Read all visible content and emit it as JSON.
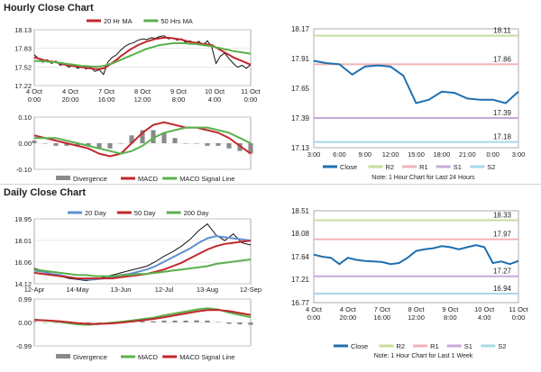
{
  "colors": {
    "ma_short": "#c0282d",
    "ma_long": "#5ab04c",
    "ma_blue": "#5f8fd0",
    "close": "#1f6fb0",
    "r2": "#c8dd9a",
    "r1": "#f0b4b4",
    "s1": "#c8a8d8",
    "s2": "#a8d8e8",
    "divergence": "#8a8a8a"
  },
  "hourly": {
    "title": "Hourly Close Chart",
    "price_chart": {
      "type": "line",
      "legend": [
        "20 Hr MA",
        "50 Hrs MA"
      ],
      "y_ticks": [
        "18.13",
        "17.83",
        "17.52",
        "17.22"
      ],
      "x_ticks": [
        [
          "4 Oct",
          "0:00"
        ],
        [
          "4 Oct",
          "20:00"
        ],
        [
          "7 Oct",
          "16:00"
        ],
        [
          "8 Oct",
          "12:00"
        ],
        [
          "9 Oct",
          "8:00"
        ],
        [
          "10 Oct",
          "4:00"
        ],
        [
          "11 Oct",
          "0:00"
        ]
      ],
      "ylim": [
        17.22,
        18.13
      ],
      "x": [
        0,
        2,
        4,
        6,
        8,
        10,
        12,
        14,
        16,
        18,
        20,
        22,
        24,
        26,
        28,
        30,
        32,
        34,
        36,
        38,
        40,
        42,
        44,
        46,
        48,
        50,
        52,
        54,
        56,
        58,
        60,
        62,
        64,
        66,
        68,
        70,
        72,
        74,
        76,
        78,
        80,
        82,
        84,
        86,
        88,
        90,
        92,
        94,
        96,
        98,
        100
      ],
      "close_series": [
        17.72,
        17.66,
        17.6,
        17.64,
        17.58,
        17.62,
        17.55,
        17.57,
        17.52,
        17.56,
        17.5,
        17.53,
        17.49,
        17.52,
        17.45,
        17.48,
        17.4,
        17.6,
        17.68,
        17.72,
        17.8,
        17.86,
        17.9,
        17.92,
        17.96,
        17.98,
        17.97,
        18.0,
        17.99,
        18.02,
        18.03,
        17.98,
        18.0,
        17.96,
        17.98,
        17.92,
        17.95,
        17.9,
        17.94,
        17.88,
        17.95,
        17.85,
        17.58,
        17.7,
        17.75,
        17.66,
        17.58,
        17.52,
        17.55,
        17.5,
        17.56
      ],
      "series": [
        {
          "name": "20 Hr MA",
          "values": [
            17.68,
            17.66,
            17.64,
            17.62,
            17.61,
            17.6,
            17.58,
            17.56,
            17.55,
            17.54,
            17.53,
            17.52,
            17.51,
            17.5,
            17.49,
            17.49,
            17.5,
            17.54,
            17.59,
            17.64,
            17.7,
            17.75,
            17.8,
            17.84,
            17.88,
            17.91,
            17.94,
            17.96,
            17.98,
            17.99,
            18.0,
            18.0,
            17.99,
            17.98,
            17.97,
            17.95,
            17.93,
            17.92,
            17.91,
            17.9,
            17.89,
            17.88,
            17.84,
            17.8,
            17.76,
            17.72,
            17.68,
            17.65,
            17.62,
            17.59,
            17.56
          ]
        },
        {
          "name": "50 Hrs MA",
          "values": [
            17.62,
            17.62,
            17.62,
            17.61,
            17.6,
            17.6,
            17.59,
            17.58,
            17.57,
            17.56,
            17.55,
            17.54,
            17.54,
            17.53,
            17.53,
            17.53,
            17.54,
            17.56,
            17.58,
            17.61,
            17.64,
            17.67,
            17.7,
            17.73,
            17.76,
            17.79,
            17.82,
            17.84,
            17.86,
            17.88,
            17.89,
            17.9,
            17.91,
            17.91,
            17.91,
            17.91,
            17.9,
            17.9,
            17.89,
            17.88,
            17.87,
            17.86,
            17.84,
            17.83,
            17.81,
            17.8,
            17.78,
            17.77,
            17.76,
            17.75,
            17.74
          ]
        }
      ]
    },
    "macd_chart": {
      "type": "line",
      "legend": [
        "Divergence",
        "MACD",
        "MACD Signal Line"
      ],
      "y_ticks": [
        "0.10",
        "0.00",
        "-0.10"
      ],
      "ylim": [
        -0.1,
        0.1
      ],
      "x": [
        0,
        5,
        10,
        15,
        20,
        25,
        30,
        35,
        40,
        45,
        50,
        55,
        60,
        65,
        70,
        75,
        80,
        85,
        90,
        95,
        100
      ],
      "series": [
        {
          "name": "MACD",
          "values": [
            0.03,
            0.02,
            0.01,
            0.0,
            -0.01,
            -0.02,
            -0.04,
            -0.05,
            -0.04,
            0.0,
            0.04,
            0.07,
            0.08,
            0.07,
            0.06,
            0.06,
            0.05,
            0.04,
            0.02,
            -0.01,
            -0.04
          ]
        },
        {
          "name": "MACD Signal Line",
          "values": [
            0.02,
            0.02,
            0.02,
            0.01,
            0.0,
            -0.01,
            -0.02,
            -0.03,
            -0.04,
            -0.03,
            -0.01,
            0.02,
            0.04,
            0.05,
            0.06,
            0.06,
            0.06,
            0.05,
            0.04,
            0.02,
            0.0
          ]
        },
        {
          "name": "Divergence",
          "values": [
            0.01,
            0.0,
            -0.01,
            -0.01,
            -0.01,
            -0.01,
            -0.02,
            -0.02,
            0.0,
            0.03,
            0.05,
            0.05,
            0.04,
            0.02,
            0.0,
            0.0,
            -0.01,
            -0.01,
            -0.02,
            -0.03,
            -0.04
          ]
        }
      ]
    },
    "pivot_chart": {
      "type": "line",
      "y_ticks": [
        "18.17",
        "17.91",
        "17.65",
        "17.39",
        "17.13"
      ],
      "ylim": [
        17.13,
        18.17
      ],
      "x_ticks": [
        "3:00",
        "6:00",
        "9:00",
        "12:00",
        "15:00",
        "18:00",
        "21:00",
        "0:00",
        "3:00"
      ],
      "x": [
        0,
        0.5,
        1,
        1.5,
        2,
        2.5,
        3,
        3.5,
        4,
        4.5,
        5,
        5.5,
        6,
        6.5,
        7,
        7.5,
        8
      ],
      "close": [
        17.89,
        17.87,
        17.86,
        17.77,
        17.84,
        17.85,
        17.84,
        17.76,
        17.52,
        17.55,
        17.62,
        17.61,
        17.56,
        17.55,
        17.55,
        17.52,
        17.62
      ],
      "levels": [
        {
          "name": "R2",
          "value": 18.11,
          "label": "18.11"
        },
        {
          "name": "R1",
          "value": 17.86,
          "label": "17.86"
        },
        {
          "name": "S1",
          "value": 17.39,
          "label": "17.39"
        },
        {
          "name": "S2",
          "value": 17.18,
          "label": "17.18"
        }
      ],
      "legend": [
        "Close",
        "R2",
        "R1",
        "S1",
        "S2"
      ],
      "note": "Note: 1 Hour Chart for Last 24 Hours"
    }
  },
  "daily": {
    "title": "Daily Close Chart",
    "price_chart": {
      "type": "line",
      "legend": [
        "20 Day",
        "50 Day",
        "200 Day"
      ],
      "y_ticks": [
        "19.95",
        "18.01",
        "16.06",
        "14.12"
      ],
      "x_ticks": [
        "12-Apr",
        "14-May",
        "13-Jun",
        "12-Jul",
        "13-Aug",
        "12-Sep"
      ],
      "ylim": [
        14.12,
        19.95
      ],
      "x": [
        0,
        4,
        8,
        12,
        16,
        20,
        24,
        28,
        32,
        36,
        40,
        44,
        48,
        52,
        56,
        60,
        64,
        68,
        72,
        76,
        80,
        84,
        88,
        92,
        96,
        100
      ],
      "close_series": [
        15.5,
        15.3,
        15.0,
        14.8,
        14.6,
        14.5,
        14.4,
        14.5,
        14.7,
        14.9,
        15.1,
        15.3,
        15.5,
        15.7,
        16.1,
        16.6,
        17.0,
        17.5,
        18.1,
        18.9,
        19.5,
        18.5,
        18.0,
        18.6,
        17.8,
        17.6
      ],
      "series": [
        {
          "name": "20 Day",
          "values": [
            15.3,
            15.2,
            15.0,
            14.9,
            14.7,
            14.6,
            14.5,
            14.5,
            14.6,
            14.7,
            14.9,
            15.0,
            15.2,
            15.4,
            15.7,
            16.1,
            16.5,
            16.9,
            17.3,
            17.8,
            18.2,
            18.4,
            18.3,
            18.2,
            18.1,
            18.0
          ]
        },
        {
          "name": "50 Day",
          "values": [
            15.1,
            15.0,
            14.9,
            14.8,
            14.7,
            14.6,
            14.6,
            14.6,
            14.6,
            14.6,
            14.7,
            14.8,
            14.9,
            15.0,
            15.2,
            15.4,
            15.7,
            16.0,
            16.4,
            16.8,
            17.2,
            17.5,
            17.7,
            17.8,
            17.9,
            18.0
          ]
        },
        {
          "name": "200 Day",
          "values": [
            15.4,
            15.3,
            15.2,
            15.1,
            15.0,
            14.9,
            14.9,
            14.8,
            14.8,
            14.8,
            14.9,
            14.9,
            15.0,
            15.0,
            15.1,
            15.2,
            15.3,
            15.4,
            15.5,
            15.6,
            15.7,
            15.9,
            16.0,
            16.1,
            16.2,
            16.3
          ]
        }
      ]
    },
    "macd_chart": {
      "type": "line",
      "legend": [
        "Divergence",
        "MACD",
        "MACD Signal Line"
      ],
      "y_ticks": [
        "0.99",
        "0.00",
        "-0.99"
      ],
      "ylim": [
        -0.99,
        0.99
      ],
      "x": [
        0,
        5,
        10,
        15,
        20,
        25,
        30,
        35,
        40,
        45,
        50,
        55,
        60,
        65,
        70,
        75,
        80,
        85,
        90,
        95,
        100
      ],
      "series": [
        {
          "name": "MACD",
          "values": [
            0.12,
            0.08,
            0.04,
            -0.02,
            -0.08,
            -0.1,
            -0.06,
            -0.02,
            0.03,
            0.08,
            0.14,
            0.2,
            0.3,
            0.38,
            0.46,
            0.55,
            0.6,
            0.55,
            0.42,
            0.32,
            0.22
          ]
        },
        {
          "name": "MACD Signal Line",
          "values": [
            0.1,
            0.09,
            0.06,
            0.02,
            -0.03,
            -0.06,
            -0.06,
            -0.04,
            -0.01,
            0.04,
            0.09,
            0.15,
            0.22,
            0.3,
            0.38,
            0.46,
            0.52,
            0.53,
            0.48,
            0.4,
            0.32
          ]
        },
        {
          "name": "Divergence",
          "values": [
            0.02,
            -0.01,
            -0.02,
            -0.04,
            -0.05,
            -0.04,
            0.0,
            0.02,
            0.04,
            0.04,
            0.05,
            0.05,
            0.08,
            0.08,
            0.08,
            0.09,
            0.08,
            0.02,
            -0.06,
            -0.08,
            -0.1
          ]
        }
      ]
    },
    "pivot_chart": {
      "type": "line",
      "y_ticks": [
        "18.51",
        "18.08",
        "17.64",
        "17.21",
        "16.77"
      ],
      "ylim": [
        16.77,
        18.51
      ],
      "x_ticks": [
        [
          "4 Oct",
          "0:00"
        ],
        [
          "4 Oct",
          "20:00"
        ],
        [
          "7 Oct",
          "16:00"
        ],
        [
          "8 Oct",
          "12:00"
        ],
        [
          "9 Oct",
          "8:00"
        ],
        [
          "10 Oct",
          "4:00"
        ],
        [
          "11 Oct",
          "0:00"
        ]
      ],
      "x": [
        0,
        0.5,
        1,
        1.5,
        2,
        2.5,
        3,
        3.5,
        4,
        4.5,
        5,
        5.5,
        6,
        6.5,
        7,
        7.5,
        8,
        8.5,
        9,
        9.5,
        10,
        10.5,
        11,
        11.5,
        12
      ],
      "close": [
        17.68,
        17.64,
        17.62,
        17.5,
        17.62,
        17.58,
        17.56,
        17.55,
        17.54,
        17.5,
        17.52,
        17.62,
        17.75,
        17.78,
        17.8,
        17.84,
        17.82,
        17.78,
        17.82,
        17.86,
        17.82,
        17.52,
        17.55,
        17.5,
        17.56
      ],
      "levels": [
        {
          "name": "R2",
          "value": 18.33,
          "label": "18.33"
        },
        {
          "name": "R1",
          "value": 17.97,
          "label": "17.97"
        },
        {
          "name": "S1",
          "value": 17.27,
          "label": "17.27"
        },
        {
          "name": "S2",
          "value": 16.94,
          "label": "16.94"
        }
      ],
      "legend": [
        "Close",
        "R2",
        "R1",
        "S1",
        "S2"
      ],
      "note": "Note: 1 Hour Chart for Last 1 Week"
    }
  },
  "chart_data": [
    {
      "type": "line",
      "title": "Hourly Close Chart",
      "ref": "hourly.price_chart"
    },
    {
      "type": "line",
      "ref": "hourly.macd_chart"
    },
    {
      "type": "line",
      "ref": "hourly.pivot_chart"
    },
    {
      "type": "line",
      "title": "Daily Close Chart",
      "ref": "daily.price_chart"
    },
    {
      "type": "line",
      "ref": "daily.macd_chart"
    },
    {
      "type": "line",
      "ref": "daily.pivot_chart"
    }
  ]
}
